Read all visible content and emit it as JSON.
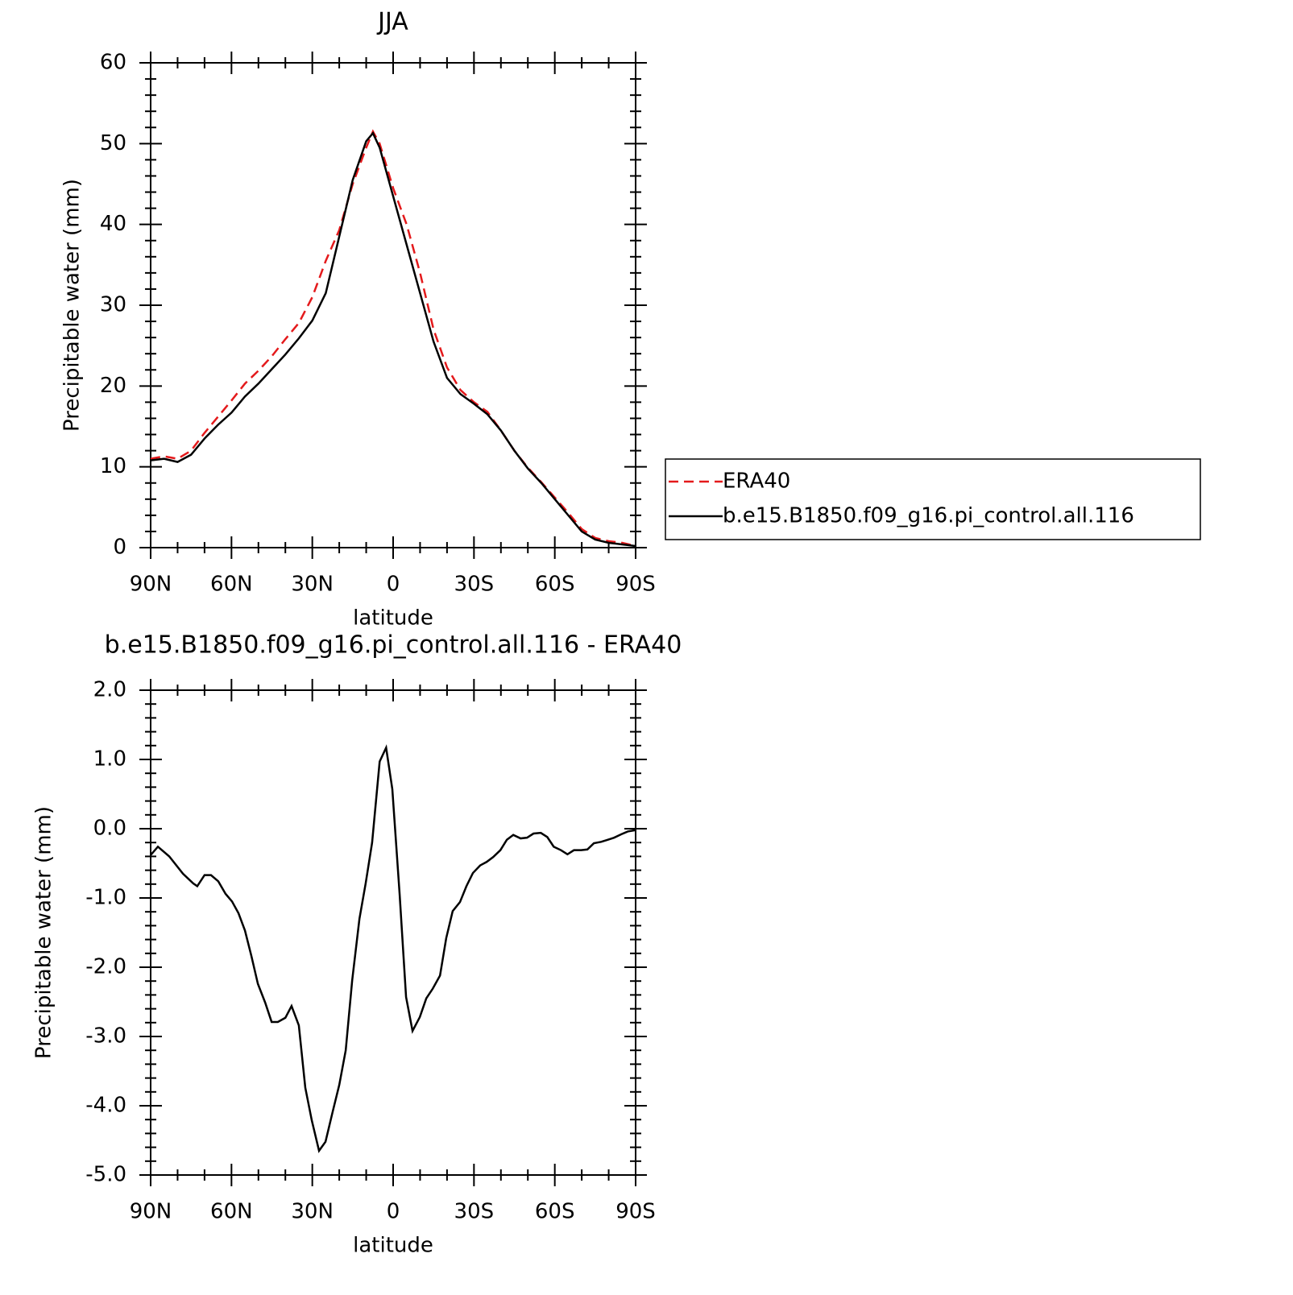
{
  "chart_data": [
    {
      "type": "line",
      "title": "JJA",
      "x_label": "latitude",
      "y_label": "Precipitable water (mm)",
      "xlim": [
        90,
        -90
      ],
      "ylim": [
        0,
        60
      ],
      "xticks": [
        {
          "value": 90,
          "label": "90N"
        },
        {
          "value": 60,
          "label": "60N"
        },
        {
          "value": 30,
          "label": "30N"
        },
        0,
        {
          "value": -30,
          "label": "30S"
        },
        {
          "value": -60,
          "label": "60S"
        },
        {
          "value": -90,
          "label": "90S"
        }
      ],
      "yticks": [
        0,
        10,
        20,
        30,
        40,
        50,
        60
      ],
      "legend": "right",
      "x": [
        90,
        85,
        80,
        75,
        70,
        65,
        60,
        55,
        50,
        45,
        40,
        35,
        30,
        25,
        20,
        15,
        10,
        7.5,
        5,
        0,
        -5,
        -10,
        -15,
        -20,
        -25,
        -30,
        -35,
        -40,
        -45,
        -50,
        -55,
        -60,
        -65,
        -70,
        -75,
        -80,
        -85,
        -90
      ],
      "series": [
        {
          "name": "ERA40",
          "color": "#e41a1c",
          "line_style": "dashed",
          "values": [
            11.0,
            11.3,
            11.0,
            12.0,
            14.2,
            16.2,
            18.2,
            20.3,
            21.9,
            23.7,
            25.8,
            27.8,
            31.0,
            35.5,
            39.3,
            45.0,
            49.5,
            51.5,
            50.0,
            44.5,
            40.0,
            34.0,
            27.0,
            22.3,
            19.5,
            18.0,
            16.8,
            14.5,
            12.0,
            9.9,
            8.1,
            6.2,
            4.3,
            2.3,
            1.2,
            0.8,
            0.6,
            0.2
          ]
        },
        {
          "name": "b.e15.B1850.f09_g16.pi_control.all.116",
          "color": "#000000",
          "line_style": "solid",
          "values": [
            10.8,
            11.0,
            10.6,
            11.5,
            13.5,
            15.2,
            16.7,
            18.7,
            20.3,
            22.1,
            23.9,
            25.9,
            28.1,
            31.5,
            38.5,
            45.5,
            50.3,
            51.3,
            49.5,
            43.5,
            37.5,
            31.5,
            25.5,
            21.0,
            19.0,
            17.8,
            16.5,
            14.5,
            12.0,
            9.8,
            8.0,
            6.0,
            4.0,
            2.0,
            1.0,
            0.6,
            0.4,
            0.2
          ]
        }
      ]
    },
    {
      "type": "line",
      "title": "b.e15.B1850.f09_g16.pi_control.all.116 - ERA40",
      "x_label": "latitude",
      "y_label": "Precipitable water (mm)",
      "xlim": [
        90,
        -90
      ],
      "ylim": [
        -5,
        2
      ],
      "xticks": [
        {
          "value": 90,
          "label": "90N"
        },
        {
          "value": 60,
          "label": "60N"
        },
        {
          "value": 30,
          "label": "30N"
        },
        0,
        {
          "value": -30,
          "label": "30S"
        },
        {
          "value": -60,
          "label": "60S"
        },
        {
          "value": -90,
          "label": "90S"
        }
      ],
      "yticks": [
        {
          "value": -5,
          "label": "-5.0"
        },
        {
          "value": -4,
          "label": "-4.0"
        },
        {
          "value": -3,
          "label": "-3.0"
        },
        {
          "value": -2,
          "label": "-2.0"
        },
        {
          "value": -1,
          "label": "-1.0"
        },
        {
          "value": 0,
          "label": "0.0"
        },
        {
          "value": 1,
          "label": "1.0"
        },
        {
          "value": 2,
          "label": "2.0"
        }
      ],
      "color": "#000000",
      "x": [
        90,
        87.3,
        83.1,
        78,
        74.2,
        72.7,
        70,
        67.6,
        64.9,
        62.2,
        59.8,
        57.4,
        55,
        52.6,
        50.2,
        47.5,
        45.1,
        42.8,
        40,
        37.7,
        35,
        32.6,
        30.2,
        27.5,
        25.1,
        22.4,
        20,
        17.6,
        15.2,
        12.5,
        10.2,
        7.8,
        5,
        2.6,
        0.3,
        -2.4,
        -4.8,
        -7.2,
        -9.9,
        -12.3,
        -14.7,
        -17.4,
        -19.7,
        -22.1,
        -24.8,
        -27.2,
        -29.6,
        -32.3,
        -34.7,
        -37.1,
        -39.8,
        -42.2,
        -44.6,
        -47.3,
        -49.7,
        -52.1,
        -54.8,
        -57.2,
        -59.6,
        -62.3,
        -64.7,
        -67.1,
        -69.8,
        -72.1,
        -74.5,
        -77.2,
        -79.6,
        -82,
        -84.7,
        -87.1,
        -90
      ],
      "values": [
        -0.38,
        -0.26,
        -0.4,
        -0.65,
        -0.79,
        -0.83,
        -0.67,
        -0.67,
        -0.76,
        -0.94,
        -1.05,
        -1.22,
        -1.47,
        -1.84,
        -2.24,
        -2.51,
        -2.79,
        -2.79,
        -2.73,
        -2.56,
        -2.84,
        -3.74,
        -4.21,
        -4.65,
        -4.52,
        -4.08,
        -3.7,
        -3.2,
        -2.19,
        -1.3,
        -0.79,
        -0.2,
        0.97,
        1.17,
        0.57,
        -0.94,
        -2.43,
        -2.92,
        -2.72,
        -2.45,
        -2.31,
        -2.12,
        -1.58,
        -1.19,
        -1.06,
        -0.83,
        -0.64,
        -0.53,
        -0.48,
        -0.41,
        -0.31,
        -0.16,
        -0.09,
        -0.14,
        -0.13,
        -0.07,
        -0.06,
        -0.12,
        -0.26,
        -0.31,
        -0.37,
        -0.31,
        -0.31,
        -0.3,
        -0.21,
        -0.19,
        -0.16,
        -0.13,
        -0.08,
        -0.04,
        -0.02
      ]
    }
  ]
}
